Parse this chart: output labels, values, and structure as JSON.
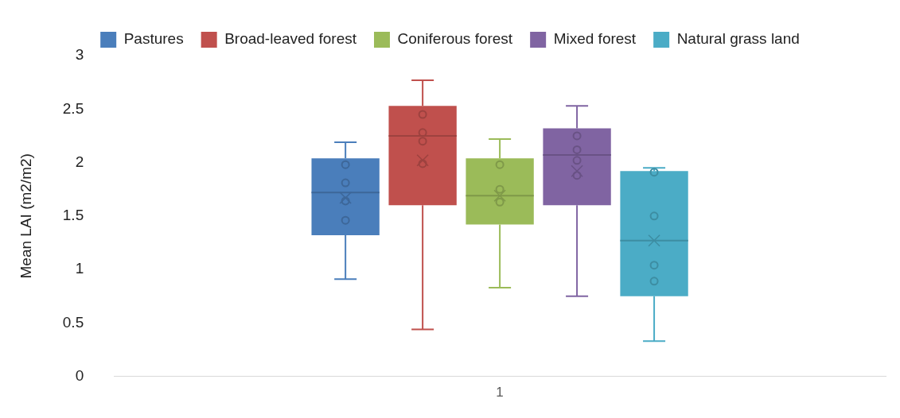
{
  "chart_data": {
    "type": "box",
    "ylabel": "Mean LAI (m2/m2)",
    "categories": [
      "1"
    ],
    "ylim": [
      0,
      3
    ],
    "yticks": [
      0,
      0.5,
      1,
      1.5,
      2,
      2.5,
      3
    ],
    "grid": false,
    "legend": "top",
    "series": [
      {
        "name": "Pastures",
        "color": "#4a7ebb",
        "boxes": [
          {
            "low": 0.91,
            "q1": 1.32,
            "median": 1.72,
            "q3": 2.04,
            "high": 2.19,
            "mean": 1.67,
            "outliers": [
              1.98,
              1.81,
              1.64,
              1.46
            ]
          }
        ]
      },
      {
        "name": "Broad-leaved forest",
        "color": "#c0504d",
        "boxes": [
          {
            "low": 0.44,
            "q1": 1.6,
            "median": 2.25,
            "q3": 2.53,
            "high": 2.77,
            "mean": 2.02,
            "outliers": [
              2.45,
              2.28,
              2.2,
              1.99
            ]
          }
        ]
      },
      {
        "name": "Coniferous forest",
        "color": "#9bbb59",
        "boxes": [
          {
            "low": 0.83,
            "q1": 1.42,
            "median": 1.69,
            "q3": 2.04,
            "high": 2.22,
            "mean": 1.69,
            "outliers": [
              1.98,
              1.75,
              1.63
            ]
          }
        ]
      },
      {
        "name": "Mixed forest",
        "color": "#8064a2",
        "boxes": [
          {
            "low": 0.75,
            "q1": 1.6,
            "median": 2.07,
            "q3": 2.32,
            "high": 2.53,
            "mean": 1.92,
            "outliers": [
              2.25,
              2.12,
              2.02,
              1.88
            ]
          }
        ]
      },
      {
        "name": "Natural grass land",
        "color": "#4bacc6",
        "boxes": [
          {
            "low": 0.33,
            "q1": 0.75,
            "median": 1.27,
            "q3": 1.92,
            "high": 1.95,
            "mean": 1.27,
            "outliers": [
              1.91,
              1.5,
              1.04,
              0.89
            ]
          }
        ]
      }
    ]
  }
}
